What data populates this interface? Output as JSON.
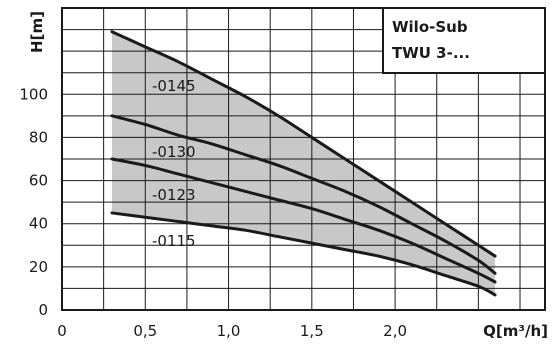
{
  "chart_data": {
    "type": "line",
    "title": "Wilo-Sub",
    "subtitle": "TWU 3-...",
    "xlabel": "Q[m³/h]",
    "ylabel": "H[m]",
    "xlim": [
      0,
      2.9
    ],
    "ylim": [
      0,
      140
    ],
    "x_ticks": [
      0,
      0.5,
      1.0,
      1.5,
      2.0
    ],
    "x_tick_labels": [
      "0",
      "0,5",
      "1,0",
      "1,5",
      "2,0"
    ],
    "y_ticks": [
      0,
      20,
      40,
      60,
      80,
      100
    ],
    "y_tick_labels": [
      "0",
      "20",
      "40",
      "60",
      "80",
      "100"
    ],
    "grid": true,
    "band": {
      "color": "#c8c8c8",
      "lower_series": "-0115",
      "upper_series": "-0145"
    },
    "series": [
      {
        "name": "-0145",
        "x": [
          0.3,
          0.5,
          0.7,
          0.9,
          1.1,
          1.3,
          1.5,
          1.7,
          1.9,
          2.1,
          2.3,
          2.5,
          2.6
        ],
        "values": [
          129,
          122,
          115,
          107,
          99,
          90,
          80,
          70,
          60,
          50,
          40,
          30,
          25
        ]
      },
      {
        "name": "-0130",
        "x": [
          0.3,
          0.5,
          0.7,
          0.9,
          1.1,
          1.3,
          1.5,
          1.7,
          1.9,
          2.1,
          2.3,
          2.5,
          2.6
        ],
        "values": [
          90,
          86,
          81,
          77,
          72,
          67,
          61,
          55,
          48,
          40,
          32,
          23,
          17
        ]
      },
      {
        "name": "-0123",
        "x": [
          0.3,
          0.5,
          0.7,
          0.9,
          1.1,
          1.3,
          1.5,
          1.7,
          1.9,
          2.1,
          2.3,
          2.5,
          2.6
        ],
        "values": [
          70,
          67,
          63,
          59,
          55,
          51,
          47,
          42,
          37,
          31,
          24,
          17,
          13
        ]
      },
      {
        "name": "-0115",
        "x": [
          0.3,
          0.5,
          0.7,
          0.9,
          1.1,
          1.3,
          1.5,
          1.7,
          1.9,
          2.1,
          2.3,
          2.5,
          2.6
        ],
        "values": [
          45,
          43,
          41,
          39,
          37,
          34,
          31,
          28,
          25,
          21,
          16,
          11,
          7
        ]
      }
    ],
    "curve_labels": [
      "-0145",
      "-0130",
      "-0123",
      "-0115"
    ]
  }
}
